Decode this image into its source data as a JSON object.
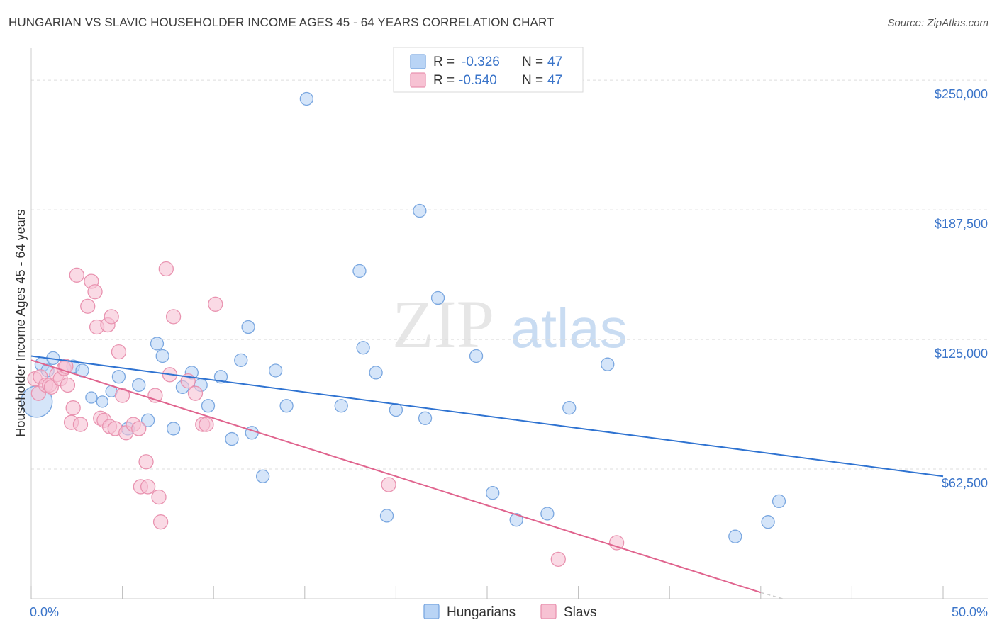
{
  "title": "HUNGARIAN VS SLAVIC HOUSEHOLDER INCOME AGES 45 - 64 YEARS CORRELATION CHART",
  "source": "Source: ZipAtlas.com",
  "watermark": {
    "zip": "ZIP",
    "atlas": "atlas"
  },
  "colors": {
    "hungarian_fill": "#b9d4f5",
    "hungarian_stroke": "#7aa7e0",
    "hungarian_line": "#2f73d1",
    "slav_fill": "#f7c2d3",
    "slav_stroke": "#e993b0",
    "slav_line": "#e0648e",
    "tick_blue": "#3a74c9",
    "grid": "#dddddd"
  },
  "legend": {
    "r_label": "R =",
    "n_label": "N =",
    "rows": [
      {
        "series": "Hungarians",
        "r": "-0.326",
        "n": "47"
      },
      {
        "series": "Slavs",
        "r": "-0.540",
        "n": "47"
      }
    ]
  },
  "chart_data": {
    "type": "scatter",
    "title": "HUNGARIAN VS SLAVIC HOUSEHOLDER INCOME AGES 45 - 64 YEARS CORRELATION CHART",
    "xlabel": "",
    "ylabel": "Householder Income Ages 45 - 64 years",
    "xlim": [
      0,
      50
    ],
    "ylim": [
      0,
      262000
    ],
    "x_tick_labels": [
      "0.0%",
      "50.0%"
    ],
    "y_ticks": [
      62500,
      125000,
      187500,
      250000
    ],
    "y_tick_labels": [
      "$62,500",
      "$125,000",
      "$187,500",
      "$250,000"
    ],
    "legend_position": "bottom",
    "series": [
      {
        "name": "Hungarians",
        "trend": {
          "x0": 0,
          "y0": 117000,
          "x1": 50,
          "y1": 59000
        },
        "points": [
          [
            0.3,
            95000,
            22
          ],
          [
            0.6,
            113000,
            10
          ],
          [
            1.2,
            116000,
            9
          ],
          [
            2.3,
            112000,
            9
          ],
          [
            2.8,
            110000,
            9
          ],
          [
            3.3,
            97000,
            8
          ],
          [
            3.9,
            95000,
            8
          ],
          [
            4.4,
            100000,
            8
          ],
          [
            4.8,
            107000,
            9
          ],
          [
            5.3,
            82000,
            9
          ],
          [
            5.9,
            103000,
            9
          ],
          [
            6.4,
            86000,
            9
          ],
          [
            6.9,
            123000,
            9
          ],
          [
            7.2,
            117000,
            9
          ],
          [
            7.8,
            82000,
            9
          ],
          [
            8.3,
            102000,
            9
          ],
          [
            8.8,
            109000,
            9
          ],
          [
            9.3,
            103000,
            9
          ],
          [
            9.7,
            93000,
            9
          ],
          [
            10.4,
            107000,
            9
          ],
          [
            11.0,
            77000,
            9
          ],
          [
            11.5,
            115000,
            9
          ],
          [
            11.9,
            131000,
            9
          ],
          [
            12.1,
            80000,
            9
          ],
          [
            12.7,
            59000,
            9
          ],
          [
            13.4,
            110000,
            9
          ],
          [
            14.0,
            93000,
            9
          ],
          [
            15.1,
            241000,
            9
          ],
          [
            17.0,
            93000,
            9
          ],
          [
            18.0,
            158000,
            9
          ],
          [
            18.2,
            121000,
            9
          ],
          [
            18.9,
            109000,
            9
          ],
          [
            19.5,
            40000,
            9
          ],
          [
            20.0,
            91000,
            9
          ],
          [
            21.3,
            187000,
            9
          ],
          [
            21.6,
            87000,
            9
          ],
          [
            22.3,
            145000,
            9
          ],
          [
            24.4,
            117000,
            9
          ],
          [
            25.3,
            51000,
            9
          ],
          [
            26.6,
            38000,
            9
          ],
          [
            28.3,
            41000,
            9
          ],
          [
            29.5,
            92000,
            9
          ],
          [
            31.6,
            113000,
            9
          ],
          [
            38.6,
            30000,
            9
          ],
          [
            40.4,
            37000,
            9
          ],
          [
            41.0,
            47000,
            9
          ],
          [
            0.9,
            110000,
            9
          ]
        ]
      },
      {
        "name": "Slavs",
        "trend": {
          "x0": 0,
          "y0": 115000,
          "x1": 40,
          "y1": 3000
        },
        "dashed_extension": {
          "x0": 40,
          "y0": 3000,
          "x1": 41.2,
          "y1": 0
        },
        "points": [
          [
            0.2,
            106000,
            10
          ],
          [
            0.4,
            99000,
            10
          ],
          [
            0.5,
            107000,
            10
          ],
          [
            0.8,
            103000,
            10
          ],
          [
            1.0,
            103000,
            10
          ],
          [
            1.1,
            102000,
            10
          ],
          [
            1.4,
            108000,
            10
          ],
          [
            1.6,
            106000,
            10
          ],
          [
            1.8,
            111000,
            10
          ],
          [
            1.9,
            112000,
            10
          ],
          [
            2.2,
            85000,
            10
          ],
          [
            2.3,
            92000,
            10
          ],
          [
            2.5,
            156000,
            10
          ],
          [
            2.7,
            84000,
            10
          ],
          [
            3.1,
            141000,
            10
          ],
          [
            3.3,
            153000,
            10
          ],
          [
            3.5,
            148000,
            10
          ],
          [
            3.6,
            131000,
            10
          ],
          [
            3.8,
            87000,
            10
          ],
          [
            4.0,
            86000,
            10
          ],
          [
            4.2,
            132000,
            10
          ],
          [
            4.3,
            83000,
            10
          ],
          [
            4.4,
            136000,
            10
          ],
          [
            4.6,
            82000,
            10
          ],
          [
            4.8,
            119000,
            10
          ],
          [
            5.0,
            98000,
            10
          ],
          [
            5.2,
            80000,
            10
          ],
          [
            5.6,
            84000,
            10
          ],
          [
            5.9,
            82000,
            10
          ],
          [
            6.0,
            54000,
            10
          ],
          [
            6.3,
            66000,
            10
          ],
          [
            6.4,
            54000,
            10
          ],
          [
            6.8,
            98000,
            10
          ],
          [
            7.0,
            49000,
            10
          ],
          [
            7.1,
            37000,
            10
          ],
          [
            7.4,
            159000,
            10
          ],
          [
            7.6,
            108000,
            10
          ],
          [
            7.8,
            136000,
            10
          ],
          [
            8.6,
            105000,
            10
          ],
          [
            9.0,
            99000,
            10
          ],
          [
            9.4,
            84000,
            10
          ],
          [
            9.6,
            84000,
            10
          ],
          [
            10.1,
            142000,
            10
          ],
          [
            19.6,
            55000,
            10
          ],
          [
            28.9,
            19000,
            10
          ],
          [
            32.1,
            27000,
            10
          ],
          [
            2.0,
            103000,
            10
          ]
        ]
      }
    ]
  },
  "bottom_legend": [
    {
      "label": "Hungarians"
    },
    {
      "label": "Slavs"
    }
  ]
}
